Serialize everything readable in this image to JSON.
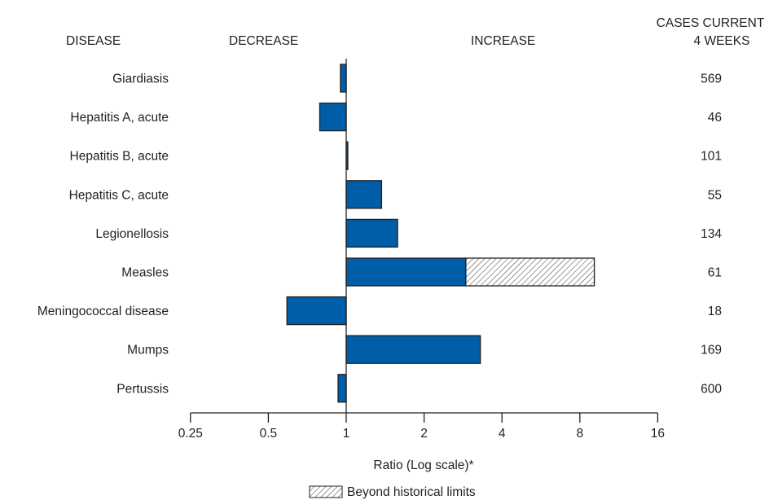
{
  "chart_data": {
    "type": "bar",
    "orientation": "horizontal",
    "x_scale": "log2",
    "baseline": 1,
    "xlim": [
      0.25,
      16
    ],
    "xlabel": "Ratio (Log scale)*",
    "column_headers": {
      "disease": "DISEASE",
      "decrease": "DECREASE",
      "increase": "INCREASE",
      "cases_line1": "CASES CURRENT",
      "cases_line2": "4 WEEKS"
    },
    "ticks": [
      {
        "value": 0.25,
        "label": "0.25"
      },
      {
        "value": 0.5,
        "label": "0.5"
      },
      {
        "value": 1,
        "label": "1"
      },
      {
        "value": 2,
        "label": "2"
      },
      {
        "value": 4,
        "label": "4"
      },
      {
        "value": 8,
        "label": "8"
      },
      {
        "value": 16,
        "label": "16"
      }
    ],
    "categories": [
      "Giardiasis",
      "Hepatitis A, acute",
      "Hepatitis B, acute",
      "Hepatitis C, acute",
      "Legionellosis",
      "Measles",
      "Meningococcal disease",
      "Mumps",
      "Pertussis"
    ],
    "ratios": [
      0.95,
      0.79,
      1.01,
      1.37,
      1.58,
      9.1,
      0.59,
      3.3,
      0.93
    ],
    "historical_limit": [
      null,
      null,
      null,
      null,
      null,
      2.9,
      null,
      null,
      null
    ],
    "cases_current_4_weeks": [
      "569",
      "46",
      "101",
      "55",
      "134",
      "61",
      "18",
      "169",
      "600"
    ],
    "legend": {
      "beyond_historical_limits": "Beyond historical limits"
    },
    "colors": {
      "bar": "#005EA8",
      "outline": "#231f20",
      "hatch": "#231f20"
    }
  }
}
